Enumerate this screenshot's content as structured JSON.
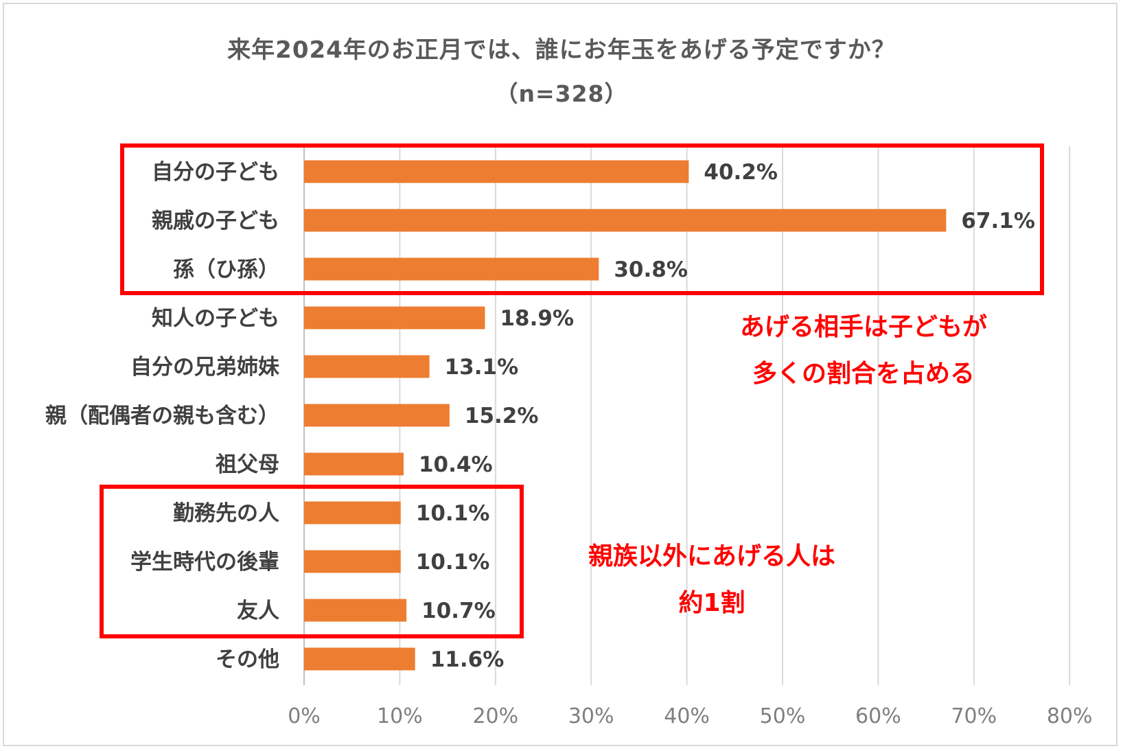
{
  "title": "来年2024年のお正月では、誰にお年玉をあげる予定ですか？",
  "subtitle": "（n=328）",
  "chart_data": {
    "type": "bar",
    "orientation": "horizontal",
    "title": "来年2024年のお正月では、誰にお年玉をあげる予定ですか？",
    "subtitle": "（n=328）",
    "categories": [
      "自分の子ども",
      "親戚の子ども",
      "孫（ひ孫）",
      "知人の子ども",
      "自分の兄弟姉妹",
      "親（配偶者の親も含む）",
      "祖父母",
      "勤務先の人",
      "学生時代の後輩",
      "友人",
      "その他"
    ],
    "values": [
      40.2,
      67.1,
      30.8,
      18.9,
      13.1,
      15.2,
      10.4,
      10.1,
      10.1,
      10.7,
      11.6
    ],
    "value_labels": [
      "40.2%",
      "67.1%",
      "30.8%",
      "18.9%",
      "13.1%",
      "15.2%",
      "10.4%",
      "10.1%",
      "10.1%",
      "10.7%",
      "11.6%"
    ],
    "xlim": [
      0,
      80
    ],
    "x_ticks": [
      "0%",
      "10%",
      "20%",
      "30%",
      "40%",
      "50%",
      "60%",
      "70%",
      "80%"
    ],
    "grid": "vertical",
    "bar_color": "#ed7d31",
    "highlight_color": "#ff0000",
    "highlight_groups": [
      {
        "categories": [
          "自分の子ども",
          "親戚の子ども",
          "孫（ひ孫）"
        ],
        "annotation": [
          "あげる相手は子どもが",
          "多くの割合を占める"
        ]
      },
      {
        "categories": [
          "勤務先の人",
          "学生時代の後輩",
          "友人"
        ],
        "annotation": [
          "親族以外にあげる人は",
          "約1割"
        ]
      }
    ]
  }
}
